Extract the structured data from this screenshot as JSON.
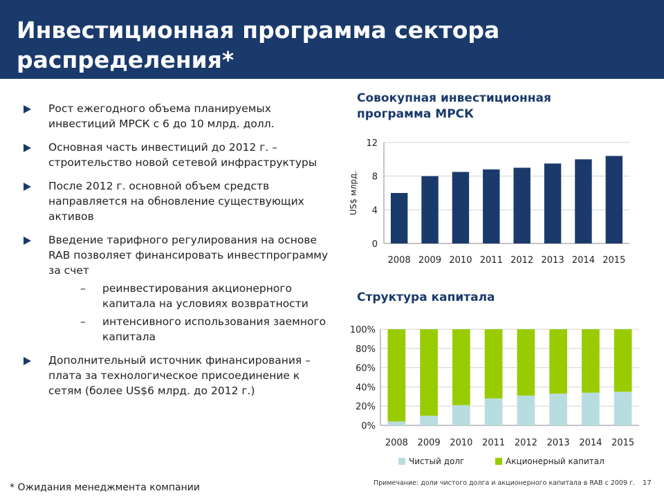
{
  "header": {
    "title": "Инвестиционная программа сектора распределения*"
  },
  "bullets": [
    {
      "text": "Рост ежегодного объема планируемых инвестиций МРСК с 6 до 10 млрд. долл."
    },
    {
      "text": "Основная часть инвестиций до 2012 г. – строительство новой сетевой инфраструктуры"
    },
    {
      "text": "После 2012 г. основной объем средств направляется на обновление существующих активов"
    },
    {
      "text": "Введение тарифного регулирования на основе RAB позволяет финансировать инвестпрограмму за счет",
      "subitems": [
        "реинвестирования акционерного капитала на условиях возвратности",
        "интенсивного использования заемного капитала"
      ]
    },
    {
      "text": "Дополнительный источник финансирования – плата за технологическое присоединение к сетям (более US$6 млрд. до 2012 г.)"
    }
  ],
  "sub_dash": "–",
  "chart_data": [
    {
      "type": "bar",
      "title": "Совокупная инвестиционная программа МРСК",
      "ylabel": "US$ млрд.",
      "categories": [
        "2008",
        "2009",
        "2010",
        "2011",
        "2012",
        "2013",
        "2014",
        "2015"
      ],
      "values": [
        6.0,
        8.0,
        8.5,
        8.8,
        9.0,
        9.5,
        10.0,
        10.4
      ],
      "yticks": [
        "0",
        "4",
        "8",
        "12"
      ],
      "ylim": [
        0,
        12
      ],
      "grid": true,
      "color": "#1a3a6b"
    },
    {
      "type": "bar",
      "stacked": true,
      "title": "Структура капитала",
      "categories": [
        "2008",
        "2009",
        "2010",
        "2011",
        "2012",
        "2013",
        "2014",
        "2015"
      ],
      "series": [
        {
          "name": "Чистый долг",
          "values": [
            4,
            10,
            21,
            28,
            31,
            33,
            34,
            35
          ],
          "color": "#b8dde1"
        },
        {
          "name": "Акционерный капитал",
          "values": [
            96,
            90,
            79,
            72,
            69,
            67,
            66,
            65
          ],
          "color": "#99cc00"
        }
      ],
      "yticks": [
        "0%",
        "20%",
        "40%",
        "60%",
        "80%",
        "100%"
      ],
      "ylim": [
        0,
        100
      ],
      "grid": true,
      "legend": "bottom"
    }
  ],
  "footer": {
    "footnote": "* Ожидания менеджмента компании",
    "note": "Примечание: доли чистого долга и акционерного капитала в RAB с 2009 г.",
    "page": "17"
  }
}
